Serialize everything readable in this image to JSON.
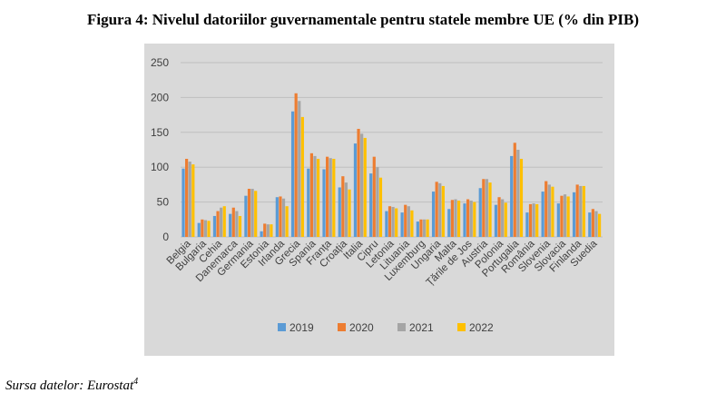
{
  "figure_title": "Figura 4: Nivelul datoriilor guvernamentale pentru statele membre UE (% din PIB)",
  "source_text": "Sursa datelor: Eurostat",
  "source_footnote": "4",
  "colors": {
    "plot_bg": "#d9d9d9",
    "gridline": "#bfbfbf",
    "axis_text": "#404040"
  },
  "chart_data": {
    "type": "bar",
    "title": "",
    "xlabel": "",
    "ylabel": "",
    "ylim": [
      0,
      250
    ],
    "yticks": [
      0,
      50,
      100,
      150,
      200,
      250
    ],
    "grid": true,
    "legend_position": "bottom",
    "categories": [
      "Belgia",
      "Bulgaria",
      "Cehia",
      "Danemarca",
      "Germania",
      "Estonia",
      "Irlanda",
      "Grecia",
      "Spania",
      "Franța",
      "Croația",
      "Italia",
      "Cipru",
      "Letonia",
      "Lituania",
      "Luxemburg",
      "Ungaria",
      "Malta",
      "Țările de Jos",
      "Austria",
      "Polonia",
      "Portugalia",
      "România",
      "Slovenia",
      "Slovacia",
      "Finlanda",
      "Suedia"
    ],
    "series": [
      {
        "name": "2019",
        "color": "#5b9bd5",
        "values": [
          98,
          20,
          30,
          33,
          59,
          8,
          57,
          180,
          98,
          97,
          71,
          134,
          91,
          37,
          35,
          22,
          65,
          40,
          48,
          70,
          46,
          116,
          35,
          65,
          48,
          64,
          35
        ]
      },
      {
        "name": "2020",
        "color": "#ed7d31",
        "values": [
          112,
          25,
          37,
          42,
          69,
          19,
          58,
          206,
          120,
          115,
          87,
          155,
          115,
          44,
          46,
          25,
          79,
          53,
          54,
          83,
          57,
          135,
          47,
          80,
          59,
          75,
          40
        ]
      },
      {
        "name": "2021",
        "color": "#a5a5a5",
        "values": [
          108,
          24,
          42,
          37,
          69,
          18,
          55,
          195,
          116,
          113,
          78,
          148,
          100,
          43,
          44,
          25,
          77,
          54,
          52,
          83,
          54,
          125,
          48,
          75,
          61,
          73,
          37
        ]
      },
      {
        "name": "2022",
        "color": "#ffc000",
        "values": [
          104,
          23,
          44,
          30,
          66,
          18,
          44,
          172,
          112,
          112,
          68,
          142,
          85,
          41,
          38,
          25,
          73,
          52,
          50,
          78,
          49,
          112,
          47,
          72,
          58,
          73,
          33
        ]
      }
    ]
  }
}
